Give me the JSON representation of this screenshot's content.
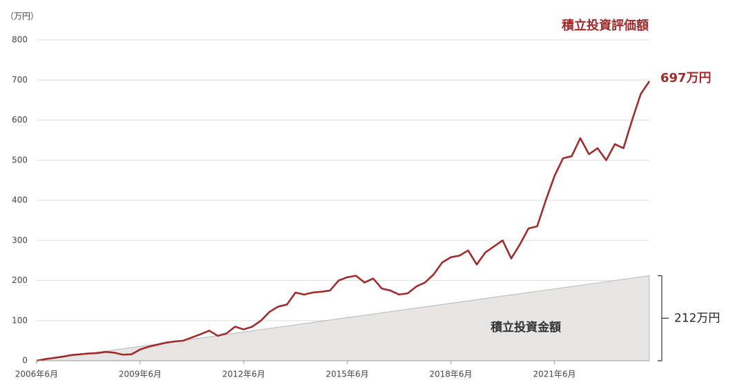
{
  "chart_data": {
    "type": "line",
    "title": "積立投資評価額",
    "y_unit_label": "（万円）",
    "ylim": [
      0,
      800
    ],
    "yticks": [
      0,
      100,
      200,
      300,
      400,
      500,
      600,
      700,
      800
    ],
    "xlim": [
      "2006-06",
      "2024-03"
    ],
    "xticks": [
      {
        "value": "2006-06",
        "label": "2006年6月"
      },
      {
        "value": "2009-06",
        "label": "2009年6月"
      },
      {
        "value": "2012-06",
        "label": "2012年6月"
      },
      {
        "value": "2015-06",
        "label": "2015年6月"
      },
      {
        "value": "2018-06",
        "label": "2018年6月"
      },
      {
        "value": "2021-06",
        "label": "2021年6月"
      }
    ],
    "grid": true,
    "series": [
      {
        "name": "積立投資金額",
        "type": "area",
        "color": "#e7e4e4",
        "x": [
          "2006-06",
          "2024-03"
        ],
        "values": [
          0,
          212
        ],
        "end_label": "212万円"
      },
      {
        "name": "積立投資評価額",
        "type": "line",
        "color": "#9e2a2b",
        "x": [
          "2006-06",
          "2006-09",
          "2006-12",
          "2007-03",
          "2007-06",
          "2007-09",
          "2007-12",
          "2008-03",
          "2008-06",
          "2008-09",
          "2008-12",
          "2009-03",
          "2009-06",
          "2009-09",
          "2009-12",
          "2010-03",
          "2010-06",
          "2010-09",
          "2010-12",
          "2011-03",
          "2011-06",
          "2011-09",
          "2011-12",
          "2012-03",
          "2012-06",
          "2012-09",
          "2012-12",
          "2013-03",
          "2013-06",
          "2013-09",
          "2013-12",
          "2014-03",
          "2014-06",
          "2014-09",
          "2014-12",
          "2015-03",
          "2015-06",
          "2015-09",
          "2015-12",
          "2016-03",
          "2016-06",
          "2016-09",
          "2016-12",
          "2017-03",
          "2017-06",
          "2017-09",
          "2017-12",
          "2018-03",
          "2018-06",
          "2018-09",
          "2018-12",
          "2019-03",
          "2019-06",
          "2019-09",
          "2019-12",
          "2020-03",
          "2020-06",
          "2020-09",
          "2020-12",
          "2021-03",
          "2021-06",
          "2021-09",
          "2021-12",
          "2022-03",
          "2022-06",
          "2022-09",
          "2022-12",
          "2023-03",
          "2023-06",
          "2023-09",
          "2023-12",
          "2024-03"
        ],
        "values": [
          0,
          4,
          7,
          10,
          14,
          16,
          18,
          19,
          22,
          20,
          15,
          16,
          28,
          35,
          40,
          45,
          48,
          50,
          58,
          66,
          75,
          62,
          68,
          85,
          78,
          85,
          100,
          122,
          135,
          140,
          170,
          165,
          170,
          172,
          175,
          200,
          208,
          212,
          195,
          205,
          180,
          175,
          165,
          168,
          185,
          195,
          215,
          245,
          258,
          262,
          275,
          240,
          270,
          285,
          300,
          255,
          290,
          330,
          335,
          400,
          460,
          505,
          510,
          555,
          515,
          530,
          500,
          540,
          530,
          600,
          665,
          697
        ],
        "end_label": "697万円"
      }
    ]
  }
}
